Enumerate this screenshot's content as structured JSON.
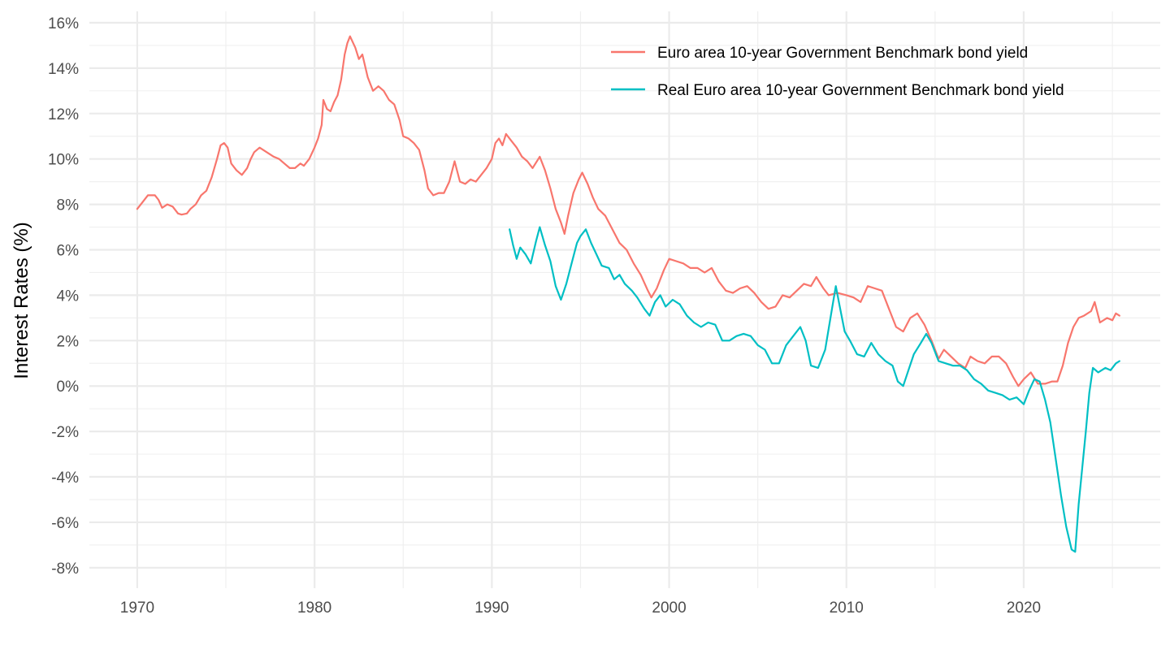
{
  "chart_data": {
    "type": "line",
    "title": "",
    "xlabel": "",
    "ylabel": "Interest Rates (%)",
    "xlim": [
      1967.3,
      2027.7
    ],
    "ylim": [
      -8.9,
      16.5
    ],
    "x_ticks": [
      1970,
      1980,
      1990,
      2000,
      2010,
      2020
    ],
    "x_tick_labels": [
      "1970",
      "1980",
      "1990",
      "2000",
      "2010",
      "2020"
    ],
    "y_ticks": [
      -8,
      -6,
      -4,
      -2,
      0,
      2,
      4,
      6,
      8,
      10,
      12,
      14,
      16
    ],
    "y_tick_labels": [
      "-8%",
      "-6%",
      "-4%",
      "-2%",
      "0%",
      "2%",
      "4%",
      "6%",
      "8%",
      "10%",
      "12%",
      "14%",
      "16%"
    ],
    "grid": true,
    "legend_position": "top-right",
    "series": [
      {
        "name": "Euro area 10-year Government Benchmark bond yield",
        "color": "#F8766D",
        "points": [
          [
            1970.0,
            7.8
          ],
          [
            1970.3,
            8.1
          ],
          [
            1970.6,
            8.4
          ],
          [
            1971.0,
            8.4
          ],
          [
            1971.2,
            8.2
          ],
          [
            1971.4,
            7.85
          ],
          [
            1971.7,
            8.0
          ],
          [
            1972.0,
            7.9
          ],
          [
            1972.3,
            7.6
          ],
          [
            1972.5,
            7.55
          ],
          [
            1972.8,
            7.6
          ],
          [
            1973.0,
            7.8
          ],
          [
            1973.3,
            8.0
          ],
          [
            1973.6,
            8.4
          ],
          [
            1973.9,
            8.6
          ],
          [
            1974.2,
            9.2
          ],
          [
            1974.5,
            10.0
          ],
          [
            1974.7,
            10.6
          ],
          [
            1974.9,
            10.7
          ],
          [
            1975.1,
            10.5
          ],
          [
            1975.3,
            9.8
          ],
          [
            1975.6,
            9.5
          ],
          [
            1975.9,
            9.3
          ],
          [
            1976.2,
            9.6
          ],
          [
            1976.4,
            10.0
          ],
          [
            1976.6,
            10.3
          ],
          [
            1976.9,
            10.5
          ],
          [
            1977.3,
            10.3
          ],
          [
            1977.7,
            10.1
          ],
          [
            1978.0,
            10.0
          ],
          [
            1978.3,
            9.8
          ],
          [
            1978.6,
            9.6
          ],
          [
            1978.9,
            9.6
          ],
          [
            1979.2,
            9.8
          ],
          [
            1979.4,
            9.7
          ],
          [
            1979.7,
            10.0
          ],
          [
            1980.0,
            10.5
          ],
          [
            1980.2,
            10.9
          ],
          [
            1980.4,
            11.5
          ],
          [
            1980.5,
            12.6
          ],
          [
            1980.7,
            12.2
          ],
          [
            1980.9,
            12.1
          ],
          [
            1981.1,
            12.5
          ],
          [
            1981.3,
            12.8
          ],
          [
            1981.5,
            13.5
          ],
          [
            1981.7,
            14.6
          ],
          [
            1981.85,
            15.1
          ],
          [
            1982.0,
            15.4
          ],
          [
            1982.3,
            14.9
          ],
          [
            1982.5,
            14.4
          ],
          [
            1982.7,
            14.6
          ],
          [
            1983.0,
            13.6
          ],
          [
            1983.3,
            13.0
          ],
          [
            1983.6,
            13.2
          ],
          [
            1983.9,
            13.0
          ],
          [
            1984.2,
            12.6
          ],
          [
            1984.5,
            12.4
          ],
          [
            1984.8,
            11.7
          ],
          [
            1985.0,
            11.0
          ],
          [
            1985.3,
            10.9
          ],
          [
            1985.6,
            10.7
          ],
          [
            1985.9,
            10.4
          ],
          [
            1986.2,
            9.5
          ],
          [
            1986.4,
            8.7
          ],
          [
            1986.7,
            8.4
          ],
          [
            1987.0,
            8.5
          ],
          [
            1987.3,
            8.5
          ],
          [
            1987.6,
            9.0
          ],
          [
            1987.9,
            9.9
          ],
          [
            1988.2,
            9.0
          ],
          [
            1988.5,
            8.9
          ],
          [
            1988.8,
            9.1
          ],
          [
            1989.1,
            9.0
          ],
          [
            1989.4,
            9.3
          ],
          [
            1989.7,
            9.6
          ],
          [
            1990.0,
            10.0
          ],
          [
            1990.2,
            10.7
          ],
          [
            1990.4,
            10.9
          ],
          [
            1990.6,
            10.6
          ],
          [
            1990.8,
            11.1
          ],
          [
            1991.1,
            10.8
          ],
          [
            1991.4,
            10.5
          ],
          [
            1991.7,
            10.1
          ],
          [
            1992.0,
            9.9
          ],
          [
            1992.3,
            9.6
          ],
          [
            1992.7,
            10.1
          ],
          [
            1993.0,
            9.5
          ],
          [
            1993.3,
            8.7
          ],
          [
            1993.6,
            7.8
          ],
          [
            1993.9,
            7.2
          ],
          [
            1994.1,
            6.7
          ],
          [
            1994.3,
            7.5
          ],
          [
            1994.6,
            8.5
          ],
          [
            1994.9,
            9.1
          ],
          [
            1995.1,
            9.4
          ],
          [
            1995.4,
            8.9
          ],
          [
            1995.7,
            8.3
          ],
          [
            1996.0,
            7.8
          ],
          [
            1996.4,
            7.5
          ],
          [
            1996.8,
            6.9
          ],
          [
            1997.2,
            6.3
          ],
          [
            1997.6,
            6.0
          ],
          [
            1998.0,
            5.4
          ],
          [
            1998.4,
            4.9
          ],
          [
            1998.8,
            4.2
          ],
          [
            1999.0,
            3.9
          ],
          [
            1999.3,
            4.3
          ],
          [
            1999.7,
            5.1
          ],
          [
            2000.0,
            5.6
          ],
          [
            2000.4,
            5.5
          ],
          [
            2000.8,
            5.4
          ],
          [
            2001.2,
            5.2
          ],
          [
            2001.6,
            5.2
          ],
          [
            2002.0,
            5.0
          ],
          [
            2002.4,
            5.2
          ],
          [
            2002.8,
            4.6
          ],
          [
            2003.2,
            4.2
          ],
          [
            2003.6,
            4.1
          ],
          [
            2004.0,
            4.3
          ],
          [
            2004.4,
            4.4
          ],
          [
            2004.8,
            4.1
          ],
          [
            2005.2,
            3.7
          ],
          [
            2005.6,
            3.4
          ],
          [
            2006.0,
            3.5
          ],
          [
            2006.4,
            4.0
          ],
          [
            2006.8,
            3.9
          ],
          [
            2007.2,
            4.2
          ],
          [
            2007.6,
            4.5
          ],
          [
            2008.0,
            4.4
          ],
          [
            2008.3,
            4.8
          ],
          [
            2008.7,
            4.3
          ],
          [
            2009.0,
            4.0
          ],
          [
            2009.5,
            4.1
          ],
          [
            2010.0,
            4.0
          ],
          [
            2010.4,
            3.9
          ],
          [
            2010.8,
            3.7
          ],
          [
            2011.2,
            4.4
          ],
          [
            2011.6,
            4.3
          ],
          [
            2012.0,
            4.2
          ],
          [
            2012.4,
            3.4
          ],
          [
            2012.8,
            2.6
          ],
          [
            2013.2,
            2.4
          ],
          [
            2013.6,
            3.0
          ],
          [
            2014.0,
            3.2
          ],
          [
            2014.4,
            2.7
          ],
          [
            2014.8,
            2.0
          ],
          [
            2015.2,
            1.2
          ],
          [
            2015.5,
            1.6
          ],
          [
            2015.9,
            1.3
          ],
          [
            2016.3,
            1.0
          ],
          [
            2016.7,
            0.8
          ],
          [
            2017.0,
            1.3
          ],
          [
            2017.4,
            1.1
          ],
          [
            2017.8,
            1.0
          ],
          [
            2018.2,
            1.3
          ],
          [
            2018.6,
            1.3
          ],
          [
            2019.0,
            1.0
          ],
          [
            2019.4,
            0.4
          ],
          [
            2019.7,
            0.0
          ],
          [
            2020.0,
            0.3
          ],
          [
            2020.4,
            0.6
          ],
          [
            2020.8,
            0.1
          ],
          [
            2021.2,
            0.1
          ],
          [
            2021.6,
            0.2
          ],
          [
            2021.9,
            0.2
          ],
          [
            2022.2,
            0.9
          ],
          [
            2022.5,
            1.9
          ],
          [
            2022.8,
            2.6
          ],
          [
            2023.1,
            3.0
          ],
          [
            2023.4,
            3.1
          ],
          [
            2023.8,
            3.3
          ],
          [
            2024.0,
            3.7
          ],
          [
            2024.3,
            2.8
          ],
          [
            2024.7,
            3.0
          ],
          [
            2025.0,
            2.9
          ],
          [
            2025.2,
            3.2
          ],
          [
            2025.4,
            3.1
          ]
        ]
      },
      {
        "name": "Real Euro area 10-year Government Benchmark bond yield",
        "color": "#00BFC4",
        "points": [
          [
            1991.0,
            6.9
          ],
          [
            1991.2,
            6.2
          ],
          [
            1991.4,
            5.6
          ],
          [
            1991.6,
            6.1
          ],
          [
            1991.9,
            5.8
          ],
          [
            1992.2,
            5.4
          ],
          [
            1992.5,
            6.4
          ],
          [
            1992.7,
            7.0
          ],
          [
            1993.0,
            6.2
          ],
          [
            1993.3,
            5.5
          ],
          [
            1993.6,
            4.4
          ],
          [
            1993.9,
            3.8
          ],
          [
            1994.2,
            4.5
          ],
          [
            1994.5,
            5.4
          ],
          [
            1994.8,
            6.3
          ],
          [
            1995.0,
            6.6
          ],
          [
            1995.3,
            6.9
          ],
          [
            1995.6,
            6.3
          ],
          [
            1995.9,
            5.8
          ],
          [
            1996.2,
            5.3
          ],
          [
            1996.6,
            5.2
          ],
          [
            1996.9,
            4.7
          ],
          [
            1997.2,
            4.9
          ],
          [
            1997.5,
            4.5
          ],
          [
            1997.9,
            4.2
          ],
          [
            1998.2,
            3.9
          ],
          [
            1998.6,
            3.4
          ],
          [
            1998.9,
            3.1
          ],
          [
            1999.2,
            3.7
          ],
          [
            1999.5,
            4.0
          ],
          [
            1999.8,
            3.5
          ],
          [
            2000.2,
            3.8
          ],
          [
            2000.6,
            3.6
          ],
          [
            2001.0,
            3.1
          ],
          [
            2001.4,
            2.8
          ],
          [
            2001.8,
            2.6
          ],
          [
            2002.2,
            2.8
          ],
          [
            2002.6,
            2.7
          ],
          [
            2003.0,
            2.0
          ],
          [
            2003.4,
            2.0
          ],
          [
            2003.8,
            2.2
          ],
          [
            2004.2,
            2.3
          ],
          [
            2004.6,
            2.2
          ],
          [
            2005.0,
            1.8
          ],
          [
            2005.4,
            1.6
          ],
          [
            2005.8,
            1.0
          ],
          [
            2006.2,
            1.0
          ],
          [
            2006.6,
            1.8
          ],
          [
            2007.0,
            2.2
          ],
          [
            2007.4,
            2.6
          ],
          [
            2007.7,
            2.0
          ],
          [
            2008.0,
            0.9
          ],
          [
            2008.4,
            0.8
          ],
          [
            2008.8,
            1.6
          ],
          [
            2009.1,
            3.0
          ],
          [
            2009.4,
            4.4
          ],
          [
            2009.6,
            3.6
          ],
          [
            2009.9,
            2.4
          ],
          [
            2010.2,
            2.0
          ],
          [
            2010.6,
            1.4
          ],
          [
            2011.0,
            1.3
          ],
          [
            2011.4,
            1.9
          ],
          [
            2011.8,
            1.4
          ],
          [
            2012.2,
            1.1
          ],
          [
            2012.6,
            0.9
          ],
          [
            2012.9,
            0.2
          ],
          [
            2013.2,
            0.0
          ],
          [
            2013.5,
            0.7
          ],
          [
            2013.8,
            1.4
          ],
          [
            2014.2,
            1.9
          ],
          [
            2014.5,
            2.3
          ],
          [
            2014.8,
            1.9
          ],
          [
            2015.2,
            1.1
          ],
          [
            2015.6,
            1.0
          ],
          [
            2016.0,
            0.9
          ],
          [
            2016.4,
            0.9
          ],
          [
            2016.8,
            0.7
          ],
          [
            2017.2,
            0.3
          ],
          [
            2017.6,
            0.1
          ],
          [
            2018.0,
            -0.2
          ],
          [
            2018.4,
            -0.3
          ],
          [
            2018.8,
            -0.4
          ],
          [
            2019.2,
            -0.6
          ],
          [
            2019.6,
            -0.5
          ],
          [
            2020.0,
            -0.8
          ],
          [
            2020.3,
            -0.2
          ],
          [
            2020.6,
            0.3
          ],
          [
            2020.9,
            0.2
          ],
          [
            2021.2,
            -0.6
          ],
          [
            2021.5,
            -1.6
          ],
          [
            2021.8,
            -3.2
          ],
          [
            2022.1,
            -4.8
          ],
          [
            2022.4,
            -6.2
          ],
          [
            2022.7,
            -7.2
          ],
          [
            2022.9,
            -7.3
          ],
          [
            2023.1,
            -5.2
          ],
          [
            2023.3,
            -3.6
          ],
          [
            2023.5,
            -2.0
          ],
          [
            2023.7,
            -0.3
          ],
          [
            2023.9,
            0.8
          ],
          [
            2024.2,
            0.6
          ],
          [
            2024.6,
            0.8
          ],
          [
            2024.9,
            0.7
          ],
          [
            2025.2,
            1.0
          ],
          [
            2025.4,
            1.1
          ]
        ]
      }
    ]
  }
}
